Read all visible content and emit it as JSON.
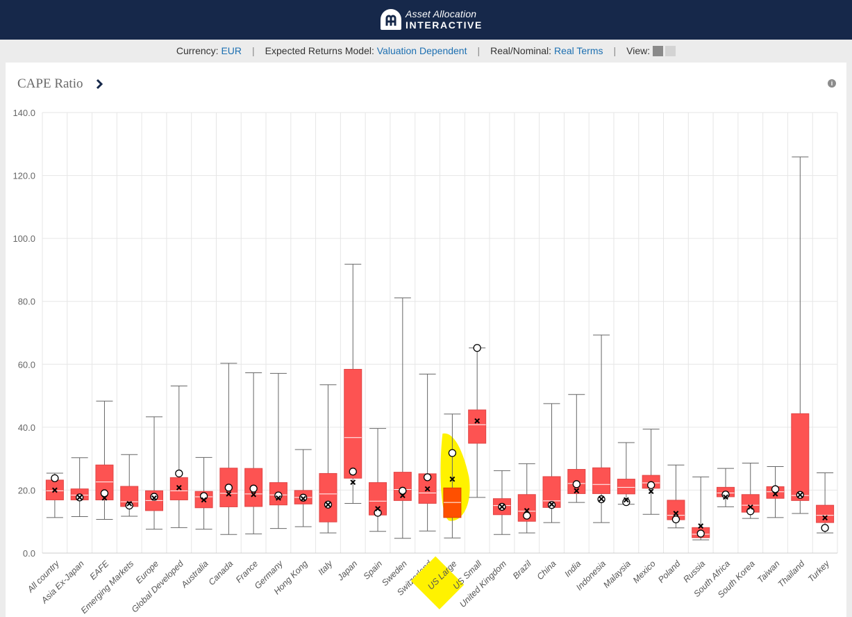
{
  "app": {
    "brand_line1": "Asset Allocation",
    "brand_line2": "INTERACTIVE"
  },
  "settings": {
    "currency_label": "Currency:",
    "currency_value": "EUR",
    "model_label": "Expected Returns Model:",
    "model_value": "Valuation Dependent",
    "real_label": "Real/Nominal:",
    "real_value": "Real Terms",
    "view_label": "View:",
    "separator": "|"
  },
  "chart_title": "CAPE Ratio",
  "icons": {
    "info": "info-icon",
    "chevron": "chevron-right-icon",
    "logo": "logo-icon"
  },
  "colors": {
    "box": "#fd5352",
    "highlight_box": "#fe5000",
    "highlight_marker": "#fff200",
    "header": "#16284a",
    "link": "#1c6fb1"
  },
  "chart_data": {
    "type": "boxplot",
    "ylim": [
      0,
      140
    ],
    "yticks": [
      "0.0",
      "20.0",
      "40.0",
      "60.0",
      "80.0",
      "100.0",
      "120.0",
      "140.0"
    ],
    "grid": true,
    "highlighted": "US Large",
    "categories": [
      {
        "name": "All country",
        "min": 11.3,
        "q1": 16.9,
        "median": 19.8,
        "q3": 23.2,
        "max": 25.4,
        "mean": 20.0,
        "current": 23.8
      },
      {
        "name": "Asia Ex-Japan",
        "min": 11.6,
        "q1": 16.9,
        "median": 18.4,
        "q3": 20.4,
        "max": 30.3,
        "mean": 17.7,
        "current": 17.7
      },
      {
        "name": "EAFE",
        "min": 10.7,
        "q1": 16.9,
        "median": 22.6,
        "q3": 28.0,
        "max": 48.3,
        "mean": 17.5,
        "current": 19.0
      },
      {
        "name": "Emerging Markets",
        "min": 11.7,
        "q1": 14.8,
        "median": 16.3,
        "q3": 21.2,
        "max": 31.3,
        "mean": 15.7,
        "current": 15.1
      },
      {
        "name": "Europe",
        "min": 7.6,
        "q1": 13.5,
        "median": 16.7,
        "q3": 19.8,
        "max": 43.3,
        "mean": 17.5,
        "current": 17.9
      },
      {
        "name": "Global Developed",
        "min": 8.1,
        "q1": 16.9,
        "median": 19.8,
        "q3": 24.0,
        "max": 53.1,
        "mean": 20.8,
        "current": 25.3
      },
      {
        "name": "Australia",
        "min": 7.6,
        "q1": 14.4,
        "median": 17.9,
        "q3": 19.6,
        "max": 30.4,
        "mean": 16.9,
        "current": 18.1
      },
      {
        "name": "Canada",
        "min": 5.9,
        "q1": 14.7,
        "median": 19.0,
        "q3": 27.0,
        "max": 60.3,
        "mean": 18.8,
        "current": 20.8
      },
      {
        "name": "France",
        "min": 6.1,
        "q1": 14.8,
        "median": 18.8,
        "q3": 26.9,
        "max": 57.3,
        "mean": 18.6,
        "current": 20.5
      },
      {
        "name": "Germany",
        "min": 7.8,
        "q1": 15.3,
        "median": 18.5,
        "q3": 22.4,
        "max": 57.1,
        "mean": 17.5,
        "current": 18.3
      },
      {
        "name": "Hong Kong",
        "min": 8.4,
        "q1": 15.6,
        "median": 17.7,
        "q3": 19.9,
        "max": 32.9,
        "mean": 17.3,
        "current": 17.6
      },
      {
        "name": "Italy",
        "min": 6.4,
        "q1": 9.9,
        "median": 18.8,
        "q3": 25.3,
        "max": 53.5,
        "mean": 15.4,
        "current": 15.4
      },
      {
        "name": "Japan",
        "min": 15.8,
        "q1": 23.8,
        "median": 36.7,
        "q3": 58.4,
        "max": 91.8,
        "mean": 22.5,
        "current": 25.9
      },
      {
        "name": "Spain",
        "min": 6.9,
        "q1": 12.1,
        "median": 16.5,
        "q3": 22.4,
        "max": 39.6,
        "mean": 14.1,
        "current": 12.8
      },
      {
        "name": "Sweden",
        "min": 4.7,
        "q1": 16.7,
        "median": 20.2,
        "q3": 25.7,
        "max": 81.1,
        "mean": 18.3,
        "current": 19.8
      },
      {
        "name": "Switzerland",
        "min": 7.0,
        "q1": 15.8,
        "median": 19.1,
        "q3": 25.2,
        "max": 56.9,
        "mean": 20.4,
        "current": 24.1
      },
      {
        "name": "US Large",
        "min": 4.8,
        "q1": 11.3,
        "median": 16.1,
        "q3": 20.7,
        "max": 44.2,
        "mean": 23.5,
        "current": 31.8
      },
      {
        "name": "US Small",
        "min": 17.7,
        "q1": 34.9,
        "median": 40.8,
        "q3": 45.5,
        "max": 65.2,
        "mean": 42.0,
        "current": 65.2
      },
      {
        "name": "United Kingdom",
        "min": 5.9,
        "q1": 12.2,
        "median": 15.1,
        "q3": 17.3,
        "max": 26.2,
        "mean": 14.7,
        "current": 14.7
      },
      {
        "name": "Brazil",
        "min": 6.4,
        "q1": 10.1,
        "median": 13.3,
        "q3": 18.6,
        "max": 28.4,
        "mean": 13.5,
        "current": 11.9
      },
      {
        "name": "China",
        "min": 9.7,
        "q1": 14.5,
        "median": 16.6,
        "q3": 24.3,
        "max": 47.5,
        "mean": 15.5,
        "current": 15.3
      },
      {
        "name": "India",
        "min": 16.1,
        "q1": 18.9,
        "median": 22.1,
        "q3": 26.6,
        "max": 50.4,
        "mean": 19.8,
        "current": 21.9
      },
      {
        "name": "Indonesia",
        "min": 9.7,
        "q1": 18.9,
        "median": 21.8,
        "q3": 27.1,
        "max": 69.3,
        "mean": 17.2,
        "current": 17.1
      },
      {
        "name": "Malaysia",
        "min": 15.5,
        "q1": 18.8,
        "median": 20.9,
        "q3": 23.5,
        "max": 35.1,
        "mean": 16.9,
        "current": 16.2
      },
      {
        "name": "Mexico",
        "min": 12.3,
        "q1": 20.6,
        "median": 22.3,
        "q3": 24.7,
        "max": 39.4,
        "mean": 19.6,
        "current": 21.6
      },
      {
        "name": "Poland",
        "min": 8.0,
        "q1": 10.6,
        "median": 12.0,
        "q3": 16.8,
        "max": 28.0,
        "mean": 12.6,
        "current": 10.7
      },
      {
        "name": "Russia",
        "min": 4.2,
        "q1": 4.9,
        "median": 6.0,
        "q3": 8.1,
        "max": 24.2,
        "mean": 8.6,
        "current": 6.2
      },
      {
        "name": "South Africa",
        "min": 14.7,
        "q1": 17.9,
        "median": 19.1,
        "q3": 20.9,
        "max": 26.9,
        "mean": 17.8,
        "current": 18.6
      },
      {
        "name": "South Korea",
        "min": 11.0,
        "q1": 13.0,
        "median": 15.2,
        "q3": 18.6,
        "max": 28.6,
        "mean": 14.6,
        "current": 13.3
      },
      {
        "name": "Taiwan",
        "min": 11.3,
        "q1": 17.4,
        "median": 19.5,
        "q3": 21.1,
        "max": 27.5,
        "mean": 18.8,
        "current": 20.3
      },
      {
        "name": "Thailand",
        "min": 12.6,
        "q1": 16.7,
        "median": 18.3,
        "q3": 44.3,
        "max": 125.9,
        "mean": 18.5,
        "current": 18.5
      },
      {
        "name": "Turkey",
        "min": 6.4,
        "q1": 9.7,
        "median": 12.0,
        "q3": 15.2,
        "max": 25.5,
        "mean": 11.2,
        "current": 8.0
      }
    ]
  }
}
